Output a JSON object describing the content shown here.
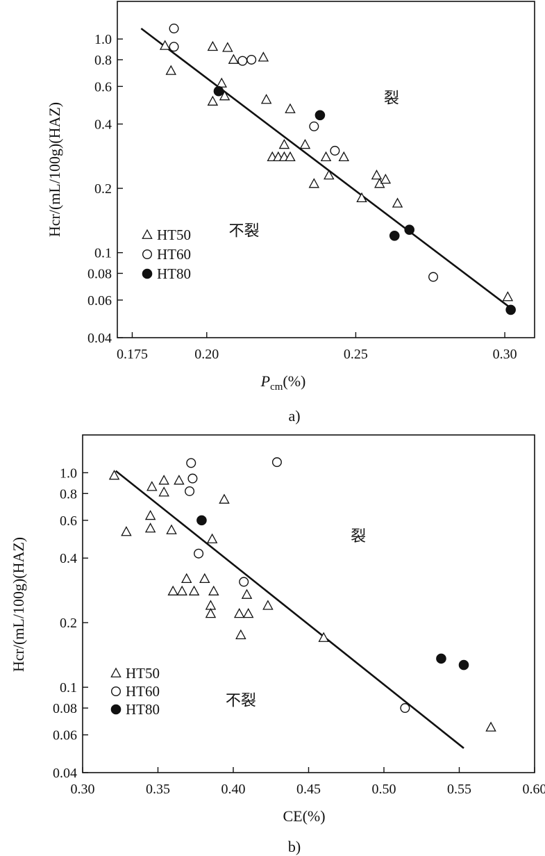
{
  "chart_data": [
    {
      "type": "scatter",
      "panel_label": "a)",
      "xlabel_main": "P",
      "xlabel_sub": "cm",
      "xlabel_tail": "(%)",
      "ylabel": "Hcr/(mL/100g)(HAZ)",
      "y_scale": "log",
      "xlim": [
        0.17,
        0.31
      ],
      "ylim": [
        0.04,
        1.5
      ],
      "x_ticks": [
        {
          "value": 0.175,
          "label": "0.175"
        },
        {
          "value": 0.2,
          "label": "0.20"
        },
        {
          "value": 0.25,
          "label": "0.25"
        },
        {
          "value": 0.3,
          "label": "0.30"
        }
      ],
      "y_ticks": [
        {
          "value": 1.0,
          "label": "1.0"
        },
        {
          "value": 0.8,
          "label": "0.8"
        },
        {
          "value": 0.6,
          "label": "0.6"
        },
        {
          "value": 0.4,
          "label": "0.4"
        },
        {
          "value": 0.2,
          "label": "0.2"
        },
        {
          "value": 0.1,
          "label": "0.1"
        },
        {
          "value": 0.08,
          "label": "0.08"
        },
        {
          "value": 0.06,
          "label": "0.06"
        },
        {
          "value": 0.04,
          "label": "0.04"
        }
      ],
      "region_labels": [
        {
          "text": "裂",
          "x": 0.262,
          "y": 0.5
        },
        {
          "text": "不裂",
          "x": 0.2125,
          "y": 0.12
        }
      ],
      "legend": {
        "position": "bottom-left",
        "entries": [
          "HT50",
          "HT60",
          "HT80"
        ]
      },
      "fit_line": {
        "x": [
          0.178,
          0.302
        ],
        "y": [
          1.12,
          0.055
        ]
      },
      "series": [
        {
          "name": "HT50",
          "marker": "triangle",
          "points": [
            [
              0.186,
              0.93
            ],
            [
              0.188,
              0.71
            ],
            [
              0.202,
              0.92
            ],
            [
              0.202,
              0.51
            ],
            [
              0.205,
              0.62
            ],
            [
              0.206,
              0.54
            ],
            [
              0.207,
              0.91
            ],
            [
              0.209,
              0.8
            ],
            [
              0.219,
              0.82
            ],
            [
              0.22,
              0.52
            ],
            [
              0.222,
              0.28
            ],
            [
              0.224,
              0.28
            ],
            [
              0.226,
              0.28
            ],
            [
              0.226,
              0.32
            ],
            [
              0.228,
              0.28
            ],
            [
              0.228,
              0.47
            ],
            [
              0.233,
              0.32
            ],
            [
              0.236,
              0.21
            ],
            [
              0.24,
              0.28
            ],
            [
              0.241,
              0.23
            ],
            [
              0.246,
              0.28
            ],
            [
              0.252,
              0.18
            ],
            [
              0.257,
              0.23
            ],
            [
              0.258,
              0.21
            ],
            [
              0.26,
              0.22
            ],
            [
              0.264,
              0.17
            ],
            [
              0.301,
              0.062
            ]
          ]
        },
        {
          "name": "HT60",
          "marker": "open-circle",
          "points": [
            [
              0.189,
              1.12
            ],
            [
              0.189,
              0.92
            ],
            [
              0.212,
              0.79
            ],
            [
              0.215,
              0.8
            ],
            [
              0.236,
              0.39
            ],
            [
              0.243,
              0.3
            ],
            [
              0.276,
              0.077
            ]
          ]
        },
        {
          "name": "HT80",
          "marker": "filled-circle",
          "points": [
            [
              0.204,
              0.57
            ],
            [
              0.238,
              0.44
            ],
            [
              0.263,
              0.12
            ],
            [
              0.268,
              0.128
            ],
            [
              0.302,
              0.054
            ]
          ]
        }
      ]
    },
    {
      "type": "scatter",
      "panel_label": "b)",
      "xlabel": "CE(%)",
      "ylabel": "Hcr/(mL/100g)(HAZ)",
      "y_scale": "log",
      "xlim": [
        0.3,
        0.6
      ],
      "ylim": [
        0.04,
        1.5
      ],
      "x_ticks": [
        {
          "value": 0.3,
          "label": "0.30"
        },
        {
          "value": 0.35,
          "label": "0.35"
        },
        {
          "value": 0.4,
          "label": "0.40"
        },
        {
          "value": 0.45,
          "label": "0.45"
        },
        {
          "value": 0.5,
          "label": "0.50"
        },
        {
          "value": 0.55,
          "label": "0.55"
        },
        {
          "value": 0.6,
          "label": "0.60"
        }
      ],
      "y_ticks": [
        {
          "value": 1.0,
          "label": "1.0"
        },
        {
          "value": 0.8,
          "label": "0.8"
        },
        {
          "value": 0.6,
          "label": "0.6"
        },
        {
          "value": 0.4,
          "label": "0.4"
        },
        {
          "value": 0.2,
          "label": "0.2"
        },
        {
          "value": 0.1,
          "label": "0.1"
        },
        {
          "value": 0.08,
          "label": "0.08"
        },
        {
          "value": 0.06,
          "label": "0.06"
        },
        {
          "value": 0.04,
          "label": "0.04"
        }
      ],
      "region_labels": [
        {
          "text": "裂",
          "x": 0.483,
          "y": 0.48
        },
        {
          "text": "不裂",
          "x": 0.405,
          "y": 0.082
        }
      ],
      "legend": {
        "position": "bottom-left",
        "entries": [
          "HT50",
          "HT60",
          "HT80"
        ]
      },
      "fit_line": {
        "x": [
          0.322,
          0.553
        ],
        "y": [
          1.02,
          0.052
        ]
      },
      "series": [
        {
          "name": "HT50",
          "marker": "triangle",
          "points": [
            [
              0.321,
              0.97
            ],
            [
              0.329,
              0.53
            ],
            [
              0.345,
              0.55
            ],
            [
              0.345,
              0.63
            ],
            [
              0.346,
              0.86
            ],
            [
              0.354,
              0.81
            ],
            [
              0.354,
              0.92
            ],
            [
              0.359,
              0.54
            ],
            [
              0.36,
              0.28
            ],
            [
              0.364,
              0.92
            ],
            [
              0.366,
              0.28
            ],
            [
              0.369,
              0.32
            ],
            [
              0.374,
              0.28
            ],
            [
              0.381,
              0.32
            ],
            [
              0.385,
              0.24
            ],
            [
              0.385,
              0.22
            ],
            [
              0.386,
              0.49
            ],
            [
              0.387,
              0.28
            ],
            [
              0.394,
              0.75
            ],
            [
              0.404,
              0.22
            ],
            [
              0.405,
              0.175
            ],
            [
              0.409,
              0.27
            ],
            [
              0.41,
              0.22
            ],
            [
              0.423,
              0.24
            ],
            [
              0.46,
              0.17
            ],
            [
              0.571,
              0.065
            ]
          ]
        },
        {
          "name": "HT60",
          "marker": "open-circle",
          "points": [
            [
              0.372,
              1.11
            ],
            [
              0.371,
              0.82
            ],
            [
              0.373,
              0.94
            ],
            [
              0.377,
              0.42
            ],
            [
              0.407,
              0.31
            ],
            [
              0.429,
              1.12
            ],
            [
              0.514,
              0.08
            ]
          ]
        },
        {
          "name": "HT80",
          "marker": "filled-circle",
          "points": [
            [
              0.379,
              0.6
            ],
            [
              0.538,
              0.136
            ],
            [
              0.553,
              0.127
            ]
          ]
        }
      ]
    }
  ]
}
